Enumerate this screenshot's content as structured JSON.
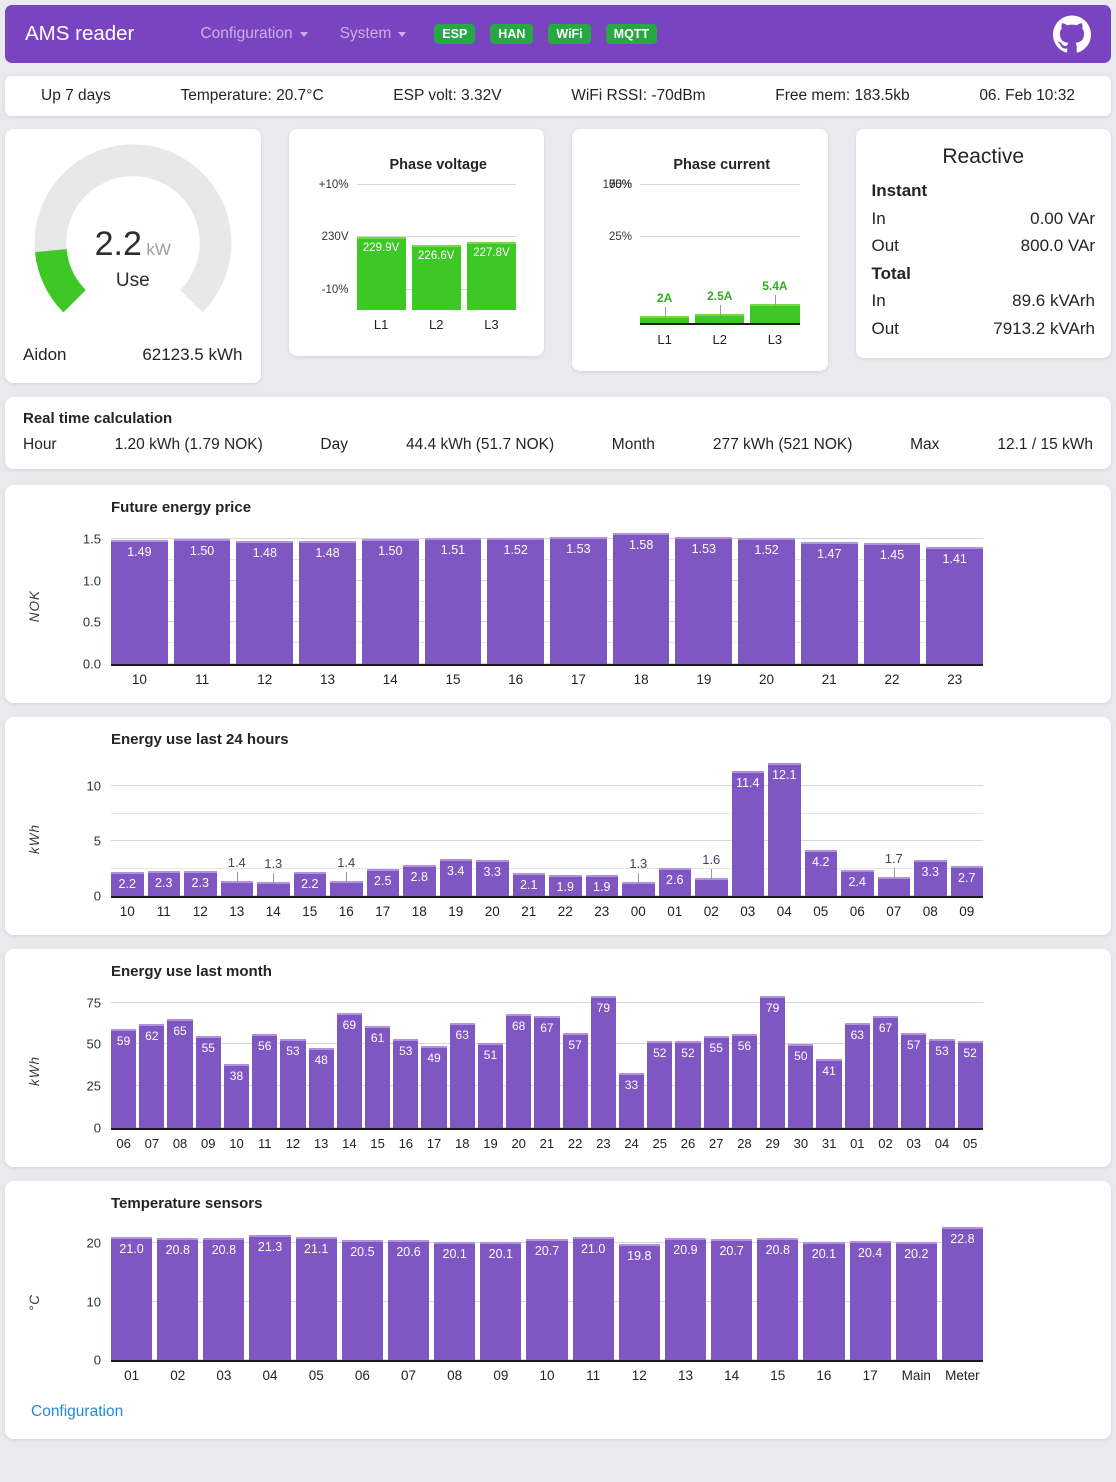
{
  "header": {
    "title": "AMS reader",
    "menus": [
      {
        "label": "Configuration"
      },
      {
        "label": "System"
      }
    ],
    "badges": [
      "ESP",
      "HAN",
      "WiFi",
      "MQTT"
    ]
  },
  "status_bar": {
    "items": [
      "Up 7 days",
      "Temperature: 20.7°C",
      "ESP volt: 3.32V",
      "WiFi RSSI: -70dBm",
      "Free mem: 183.5kb",
      "06. Feb 10:32"
    ]
  },
  "gauge": {
    "value": "2.2",
    "unit": "kW",
    "mode": "Use",
    "meter": "Aidon",
    "total": "62123.5 kWh",
    "fraction_of_max": 0.147,
    "track_color": "#e8e8e8",
    "fill_color": "#3dc825"
  },
  "reactive": {
    "title": "Reactive",
    "sections": [
      {
        "label": "Instant",
        "rows": [
          {
            "label": "In",
            "value": "0.00 VAr"
          },
          {
            "label": "Out",
            "value": "800.0 VAr"
          }
        ]
      },
      {
        "label": "Total",
        "rows": [
          {
            "label": "In",
            "value": "89.6 kVArh"
          },
          {
            "label": "Out",
            "value": "7913.2 kVArh"
          }
        ]
      }
    ]
  },
  "realtime": {
    "title": "Real time calculation",
    "pairs": [
      {
        "label": "Hour",
        "value": "1.20 kWh (1.79 NOK)"
      },
      {
        "label": "Day",
        "value": "44.4 kWh (51.7 NOK)"
      },
      {
        "label": "Month",
        "value": "277 kWh (521 NOK)"
      },
      {
        "label": "Max",
        "value": "12.1 / 15 kWh"
      }
    ]
  },
  "footer": {
    "link": "Configuration"
  },
  "chart_data": [
    {
      "id": "voltage",
      "type": "bar",
      "title": "Phase voltage",
      "categories": [
        "L1",
        "L2",
        "L3"
      ],
      "values": [
        229.9,
        226.6,
        227.8
      ],
      "labels": [
        "229.9V",
        "226.6V",
        "227.8V"
      ],
      "yticks": [
        "+10%",
        "230V",
        "-10%"
      ],
      "nominal": 230,
      "deviation_pct_range": 10,
      "label_pos": "inside",
      "bar_color": "#3dc825",
      "bar_edge": "#72d93e"
    },
    {
      "id": "current",
      "type": "bar",
      "title": "Phase current",
      "categories": [
        "L1",
        "L2",
        "L3"
      ],
      "values": [
        2,
        2.5,
        5.4
      ],
      "labels": [
        "2A",
        "2.5A",
        "5.4A"
      ],
      "yticks": [
        {
          "v": 100,
          "label": "100%"
        },
        {
          "v": 75,
          "label": "75%"
        },
        {
          "v": 50,
          "label": "50%"
        },
        {
          "v": 25,
          "label": "25%"
        }
      ],
      "ymax_amps": 40,
      "ylim": [
        0,
        100
      ],
      "label_pos": "outside",
      "out_color": "#2fae1e",
      "bar_color": "#3dc825",
      "bar_edge": "#72d93e"
    },
    {
      "id": "price",
      "type": "bar",
      "title": "Future energy price",
      "ylabel": "NOK",
      "categories": [
        "10",
        "11",
        "12",
        "13",
        "14",
        "15",
        "16",
        "17",
        "18",
        "19",
        "20",
        "21",
        "22",
        "23"
      ],
      "values": [
        1.49,
        1.5,
        1.48,
        1.48,
        1.5,
        1.51,
        1.52,
        1.53,
        1.58,
        1.53,
        1.52,
        1.47,
        1.45,
        1.41
      ],
      "labels": [
        "1.49",
        "1.50",
        "1.48",
        "1.48",
        "1.50",
        "1.51",
        "1.52",
        "1.53",
        "1.58",
        "1.53",
        "1.52",
        "1.47",
        "1.45",
        "1.41"
      ],
      "yticks": [
        {
          "v": 0.0,
          "label": "0.0"
        },
        {
          "v": 0.5,
          "label": "0.5"
        },
        {
          "v": 1.0,
          "label": "1.0"
        },
        {
          "v": 1.5,
          "label": "1.5"
        }
      ],
      "minor_ticks": [
        0.25,
        0.75,
        1.25
      ],
      "ylim": [
        0,
        1.66
      ],
      "grid": true,
      "label_pos": "inside",
      "bar_color": "#7e57c2",
      "bar_edge": "#b092dd"
    },
    {
      "id": "last24",
      "type": "bar",
      "title": "Energy use last 24 hours",
      "ylabel": "kWh",
      "categories": [
        "10",
        "11",
        "12",
        "13",
        "14",
        "15",
        "16",
        "17",
        "18",
        "19",
        "20",
        "21",
        "22",
        "23",
        "00",
        "01",
        "02",
        "03",
        "04",
        "05",
        "06",
        "07",
        "08",
        "09"
      ],
      "values": [
        2.2,
        2.3,
        2.3,
        1.4,
        1.3,
        2.2,
        1.4,
        2.5,
        2.8,
        3.4,
        3.3,
        2.1,
        1.9,
        1.9,
        1.3,
        2.6,
        1.6,
        11.4,
        12.1,
        4.2,
        2.4,
        1.7,
        3.3,
        2.7
      ],
      "labels": [
        "2.2",
        "2.3",
        "2.3",
        "1.4",
        "1.3",
        "2.2",
        "1.4",
        "2.5",
        "2.8",
        "3.4",
        "3.3",
        "2.1",
        "1.9",
        "1.9",
        "1.3",
        "2.6",
        "1.6",
        "11.4",
        "12.1",
        "4.2",
        "2.4",
        "1.7",
        "3.3",
        "2.7"
      ],
      "yticks": [
        {
          "v": 0,
          "label": "0"
        },
        {
          "v": 5,
          "label": "5"
        },
        {
          "v": 10,
          "label": "10"
        }
      ],
      "minor_ticks": [
        2.5,
        7.5
      ],
      "ylim": [
        0,
        12.6
      ],
      "grid": true,
      "label_pos": "auto",
      "inside_min": 1.8,
      "out_color": "#3d4757",
      "bar_color": "#7e57c2",
      "bar_edge": "#b092dd"
    },
    {
      "id": "month",
      "type": "bar",
      "title": "Energy use last month",
      "ylabel": "kWh",
      "categories": [
        "06",
        "07",
        "08",
        "09",
        "10",
        "11",
        "12",
        "13",
        "14",
        "15",
        "16",
        "17",
        "18",
        "19",
        "20",
        "21",
        "22",
        "23",
        "24",
        "25",
        "26",
        "27",
        "28",
        "29",
        "30",
        "31",
        "01",
        "02",
        "03",
        "04",
        "05"
      ],
      "values": [
        59,
        62,
        65,
        55,
        38,
        56,
        53,
        48,
        69,
        61,
        53,
        49,
        63,
        51,
        68,
        67,
        57,
        79,
        33,
        52,
        52,
        55,
        56,
        79,
        50,
        41,
        63,
        67,
        57,
        53,
        52
      ],
      "labels": [
        "59",
        "62",
        "65",
        "55",
        "38",
        "56",
        "53",
        "48",
        "69",
        "61",
        "53",
        "49",
        "63",
        "51",
        "68",
        "67",
        "57",
        "79",
        "33",
        "52",
        "52",
        "55",
        "56",
        "79",
        "50",
        "41",
        "63",
        "67",
        "57",
        "53",
        "52"
      ],
      "yticks": [
        {
          "v": 0,
          "label": "0"
        },
        {
          "v": 25,
          "label": "25"
        },
        {
          "v": 50,
          "label": "50"
        },
        {
          "v": 75,
          "label": "75"
        }
      ],
      "ylim": [
        0,
        82.5
      ],
      "grid": true,
      "label_pos": "inside",
      "bar_color": "#7e57c2",
      "bar_edge": "#b092dd"
    },
    {
      "id": "temp",
      "type": "bar",
      "title": "Temperature sensors",
      "ylabel": "°C",
      "categories": [
        "01",
        "02",
        "03",
        "04",
        "05",
        "06",
        "07",
        "08",
        "09",
        "10",
        "11",
        "12",
        "13",
        "14",
        "15",
        "16",
        "17",
        "Main",
        "Meter"
      ],
      "values": [
        21.0,
        20.8,
        20.8,
        21.3,
        21.1,
        20.5,
        20.6,
        20.1,
        20.1,
        20.7,
        21.0,
        19.8,
        20.9,
        20.7,
        20.8,
        20.1,
        20.4,
        20.2,
        22.8
      ],
      "labels": [
        "21.0",
        "20.8",
        "20.8",
        "21.3",
        "21.1",
        "20.5",
        "20.6",
        "20.1",
        "20.1",
        "20.7",
        "21.0",
        "19.8",
        "20.9",
        "20.7",
        "20.8",
        "20.1",
        "20.4",
        "20.2",
        "22.8"
      ],
      "yticks": [
        {
          "v": 0,
          "label": "0"
        },
        {
          "v": 10,
          "label": "10"
        },
        {
          "v": 20,
          "label": "20"
        }
      ],
      "ylim": [
        0,
        23.6
      ],
      "grid": true,
      "label_pos": "inside",
      "bar_color": "#7e57c2",
      "bar_edge": "#b092dd"
    }
  ]
}
